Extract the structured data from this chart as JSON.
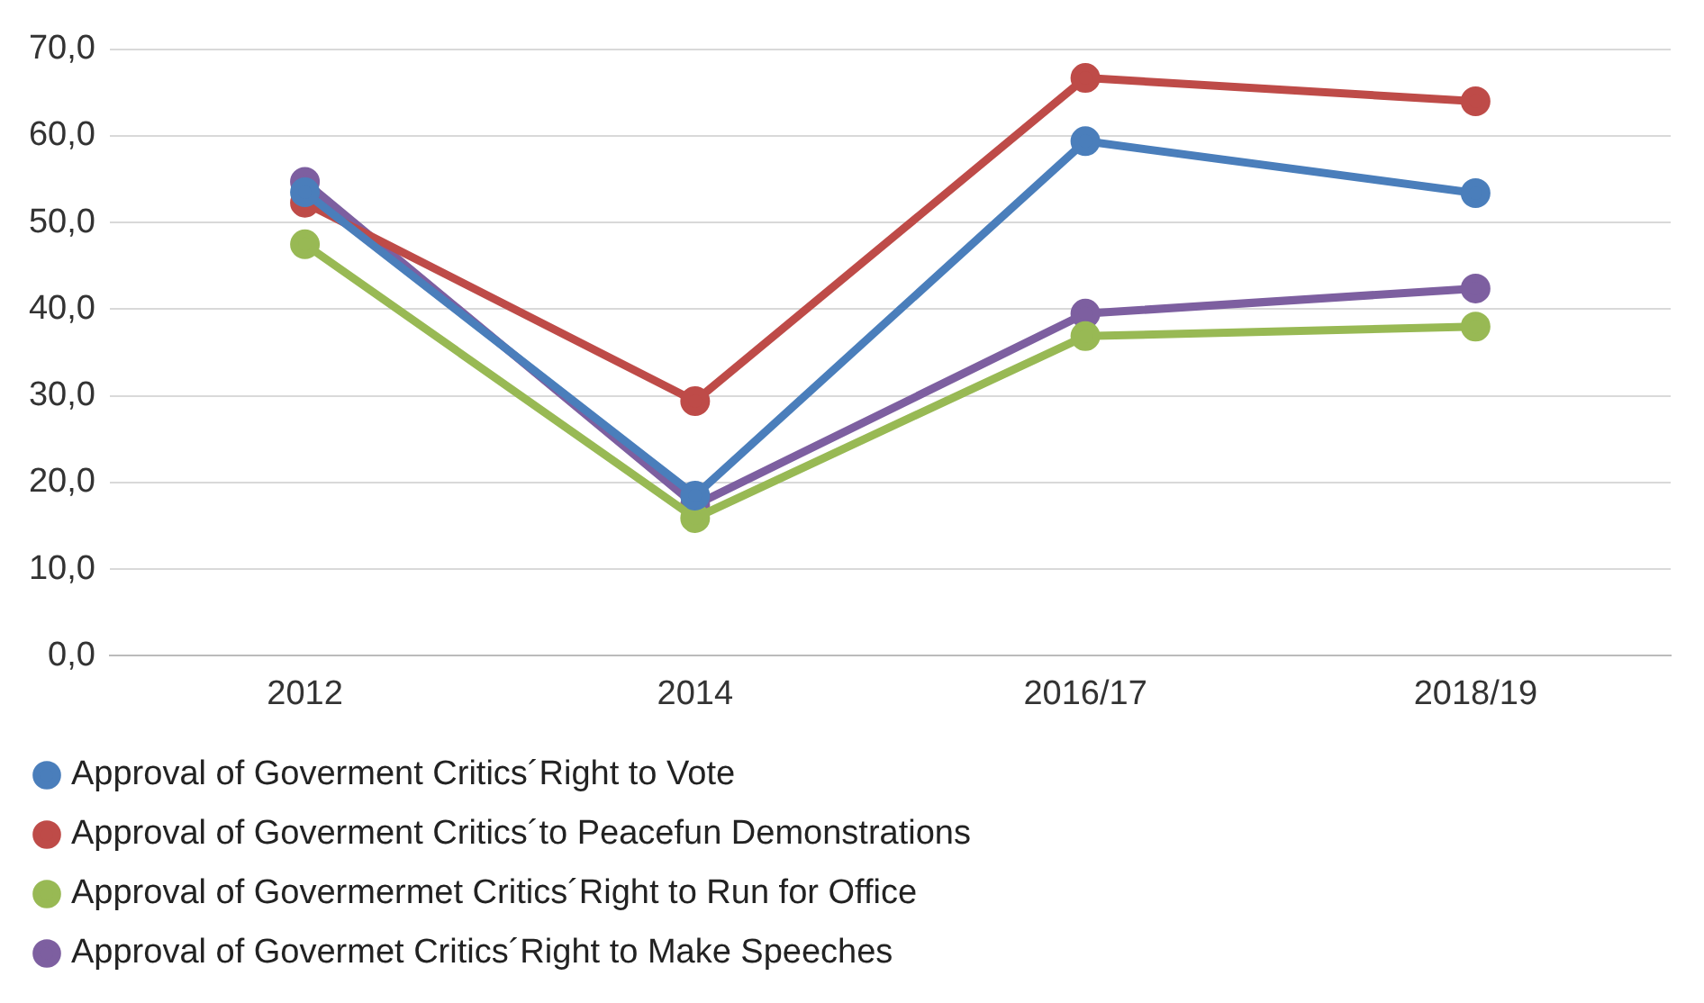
{
  "chart_data": {
    "type": "line",
    "categories": [
      "2012",
      "2014",
      "2016/17",
      "2018/19"
    ],
    "series": [
      {
        "name": "Approval of Goverment Critics´Right to Vote",
        "color": "#4a7ebb",
        "values": [
          53.5,
          18.5,
          59.4,
          53.4
        ]
      },
      {
        "name": "Approval of Goverment Critics´to Peacefun Demonstrations",
        "color": "#be4b48",
        "values": [
          52.3,
          29.4,
          66.7,
          64.0
        ]
      },
      {
        "name": "Approval of Govermermet Critics´Right to Run for Office",
        "color": "#98b954",
        "values": [
          47.5,
          15.9,
          36.9,
          38.0
        ]
      },
      {
        "name": "Approval of Govermet Critics´Right to Make Speeches",
        "color": "#7d5fa0",
        "values": [
          54.7,
          17.4,
          39.5,
          42.4
        ]
      }
    ],
    "ylim": [
      0,
      70
    ],
    "yticks": [
      {
        "value": 0,
        "label": "0,0"
      },
      {
        "value": 10,
        "label": "10,0"
      },
      {
        "value": 20,
        "label": "20,0"
      },
      {
        "value": 30,
        "label": "30,0"
      },
      {
        "value": 40,
        "label": "40,0"
      },
      {
        "value": 50,
        "label": "50,0"
      },
      {
        "value": 60,
        "label": "60,0"
      },
      {
        "value": 70,
        "label": "70,0"
      }
    ],
    "grid": "y",
    "legend": "bottom",
    "marker": "circle",
    "line_style": "solid"
  }
}
